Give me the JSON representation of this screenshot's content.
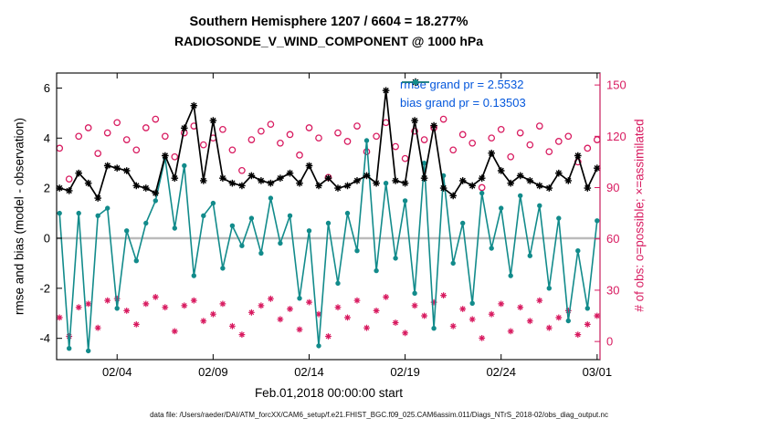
{
  "title": {
    "line1": "Southern Hemisphere 1207 / 6604 = 18.277%",
    "line2": "RADIOSONDE_V_WIND_COMPONENT @ 1000 hPa"
  },
  "axes": {
    "left_label": "rmse and bias (model - observation)",
    "right_label": "# of obs: o=possible; ×=assimilated",
    "x_label": "Feb.01,2018 00:00:00 start",
    "left_ticks": [
      6,
      4,
      2,
      0,
      -2,
      -4
    ],
    "right_ticks": [
      150,
      120,
      90,
      60,
      30,
      0
    ],
    "x_ticks": [
      "02/04",
      "02/09",
      "02/14",
      "02/19",
      "02/24",
      "03/01"
    ],
    "x_tick_days": [
      4,
      9,
      14,
      19,
      24,
      29
    ]
  },
  "legend": {
    "rmse": "rmse grand pr = 2.5532",
    "bias": "bias grand pr = 0.13503"
  },
  "footer": "data file: /Users/raeder/DAI/ATM_forcXX/CAM6_setup/f.e21.FHIST_BGC.f09_025.CAM6assim.011/Diags_NTrS_2018-02/obs_diag_output.nc",
  "colors": {
    "rmse": "#000000",
    "bias": "#128b8b",
    "obs": "#d81b60",
    "legend_text": "#0457dc",
    "zero_line": "#bbbbbb",
    "axis": "#000000"
  },
  "chart_data": {
    "type": "line",
    "title": "Southern Hemisphere 1207 / 6604 = 18.277% | RADIOSONDE_V_WIND_COMPONENT @ 1000 hPa",
    "xlabel": "Feb.01,2018 00:00:00 start",
    "ylabel_left": "rmse and bias (model - observation)",
    "ylabel_right": "# of obs: o=possible; ×=assimilated",
    "x_unit": "day of Feb 2018 (29.0 = Mar 01), 12-hourly bins",
    "xlim": [
      0.85,
      29.15
    ],
    "left_ylim": [
      -4.85,
      6.6
    ],
    "right_ylim": [
      -10.6,
      157
    ],
    "zero_line": 0,
    "grand_rmse": 2.5532,
    "grand_bias": 0.13503,
    "possible_total": 6604,
    "assimilated_total": 1207,
    "assimilated_pct": 18.277,
    "x": [
      1,
      1.5,
      2,
      2.5,
      3,
      3.5,
      4,
      4.5,
      5,
      5.5,
      6,
      6.5,
      7,
      7.5,
      8,
      8.5,
      9,
      9.5,
      10,
      10.5,
      11,
      11.5,
      12,
      12.5,
      13,
      13.5,
      14,
      14.5,
      15,
      15.5,
      16,
      16.5,
      17,
      17.5,
      18,
      18.5,
      19,
      19.5,
      20,
      20.5,
      21,
      21.5,
      22,
      22.5,
      23,
      23.5,
      24,
      24.5,
      25,
      25.5,
      26,
      26.5,
      27,
      27.5,
      28,
      28.5,
      29
    ],
    "series": {
      "rmse": [
        2.0,
        1.9,
        2.6,
        2.2,
        1.6,
        2.9,
        2.8,
        2.7,
        2.1,
        2.0,
        1.8,
        3.3,
        2.4,
        4.4,
        5.3,
        2.3,
        4.7,
        2.4,
        2.2,
        2.1,
        2.5,
        2.3,
        2.2,
        2.4,
        2.6,
        2.2,
        2.9,
        2.1,
        2.4,
        2.0,
        2.1,
        2.3,
        2.5,
        2.2,
        5.9,
        2.3,
        2.2,
        4.7,
        2.4,
        4.5,
        2.0,
        1.7,
        2.3,
        2.1,
        2.4,
        3.4,
        2.7,
        2.2,
        2.5,
        2.3,
        2.1,
        2.0,
        2.6,
        2.3,
        3.3,
        2.0,
        2.8
      ],
      "bias": [
        1.0,
        -4.4,
        1.0,
        -4.5,
        0.9,
        1.2,
        -2.8,
        0.3,
        -0.9,
        0.6,
        1.5,
        3.2,
        0.4,
        2.9,
        -1.5,
        0.9,
        1.4,
        -1.2,
        0.5,
        -0.3,
        0.8,
        -0.6,
        1.6,
        -0.2,
        0.9,
        -2.4,
        0.3,
        -4.3,
        0.6,
        -1.8,
        1.0,
        -0.5,
        3.9,
        -1.3,
        2.2,
        -0.8,
        1.5,
        -2.2,
        3.0,
        -3.6,
        2.5,
        -1.0,
        0.6,
        -2.6,
        1.8,
        -0.4,
        1.2,
        -1.5,
        1.7,
        -0.7,
        1.3,
        -2.0,
        0.8,
        -3.3,
        -0.5,
        -2.8,
        0.7
      ],
      "possible": [
        113,
        95,
        120,
        125,
        110,
        122,
        128,
        118,
        112,
        125,
        130,
        120,
        108,
        122,
        126,
        115,
        119,
        124,
        112,
        100,
        118,
        123,
        127,
        116,
        121,
        109,
        125,
        119,
        96,
        122,
        117,
        126,
        111,
        120,
        128,
        114,
        107,
        123,
        118,
        125,
        130,
        112,
        121,
        116,
        90,
        119,
        124,
        108,
        122,
        115,
        126,
        111,
        117,
        120,
        105,
        113,
        118
      ],
      "assimilated": [
        14,
        3,
        20,
        22,
        8,
        24,
        25,
        18,
        10,
        22,
        26,
        20,
        6,
        21,
        24,
        12,
        16,
        22,
        9,
        4,
        17,
        21,
        25,
        13,
        19,
        7,
        23,
        16,
        3,
        20,
        14,
        24,
        8,
        18,
        26,
        11,
        5,
        21,
        15,
        23,
        27,
        9,
        19,
        13,
        2,
        16,
        22,
        6,
        20,
        12,
        24,
        8,
        14,
        18,
        4,
        10,
        15
      ]
    },
    "series_meta": [
      {
        "key": "rmse",
        "axis": "left",
        "color": "#000000",
        "marker": "asterisk",
        "line": true
      },
      {
        "key": "bias",
        "axis": "left",
        "color": "#128b8b",
        "marker": "filled-circle",
        "line": true
      },
      {
        "key": "possible",
        "axis": "right",
        "color": "#d81b60",
        "marker": "open-circle",
        "line": false
      },
      {
        "key": "assimilated",
        "axis": "right",
        "color": "#d81b60",
        "marker": "asterisk",
        "line": false
      }
    ],
    "legend_position": "top-right-inside",
    "grid": false
  }
}
